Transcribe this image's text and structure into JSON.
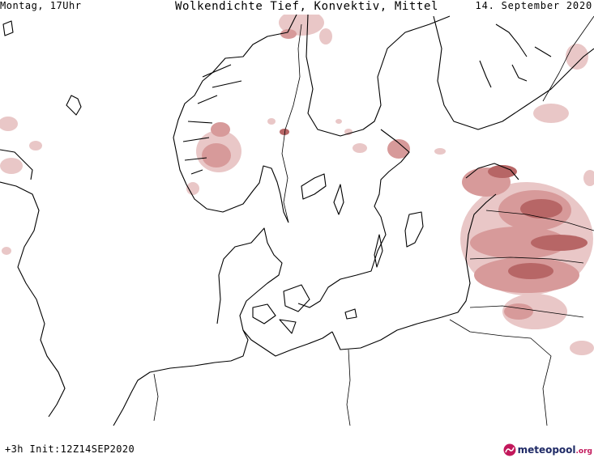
{
  "header": {
    "left_text": "Montag, 17Uhr",
    "title": "Wolkendichte  Tief, Konvektiv, Mittel",
    "date_text": "14. September 2020"
  },
  "map": {
    "coast_color": "#000000",
    "cloud_colors": [
      "#e9c7c7",
      "#d79a9a",
      "#b76666"
    ]
  },
  "footer": {
    "run_text": "+3h Init:12Z14SEP2020",
    "brand_name": "meteopool",
    "brand_tld": ".org",
    "brand_colors": [
      "#1f2a66",
      "#c2185b"
    ],
    "logo_icon": "meteopool-logo-icon"
  }
}
